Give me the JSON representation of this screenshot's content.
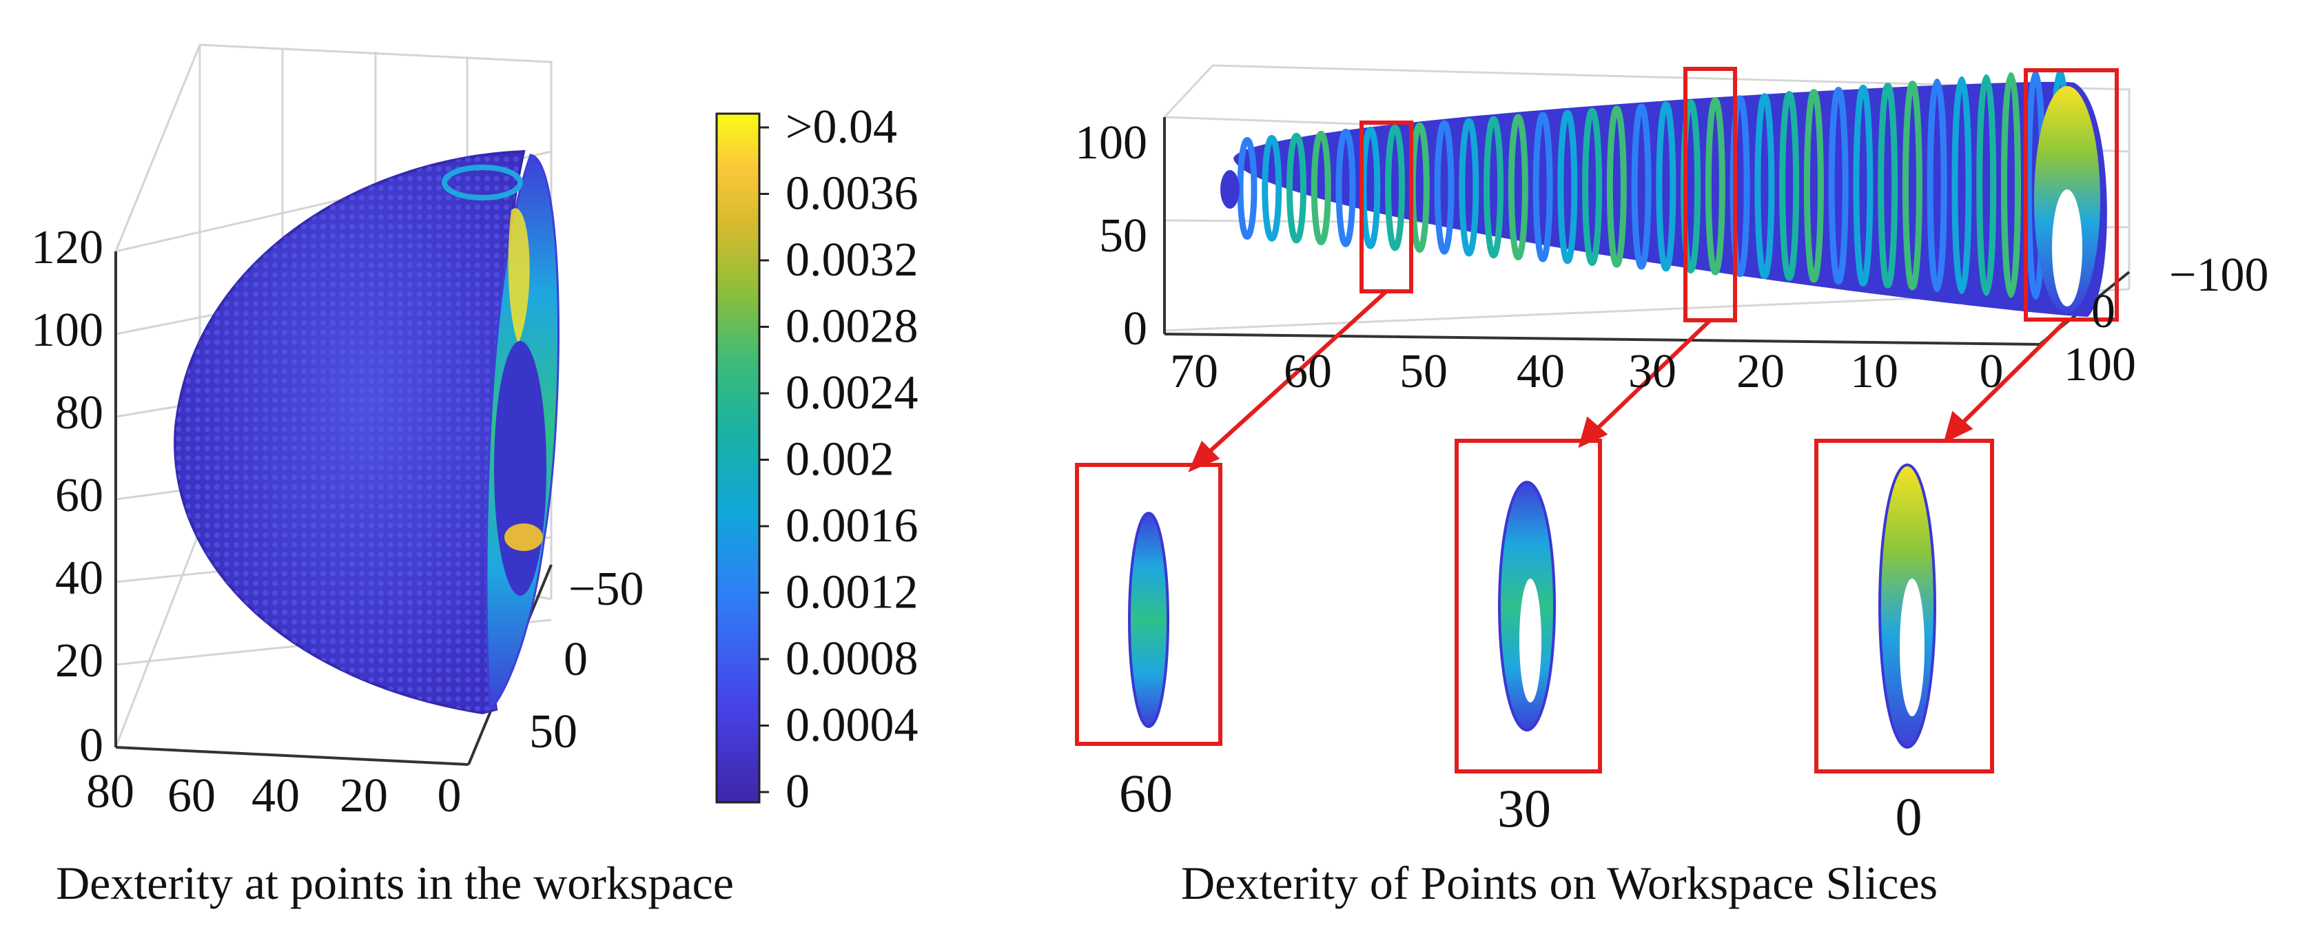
{
  "chart_data": [
    {
      "type": "scatter3d",
      "title": "Dexterity at points in the workspace",
      "x_ticks": [
        "80",
        "60",
        "40",
        "20",
        "0"
      ],
      "y_ticks": [
        "−50",
        "0",
        "50"
      ],
      "z_ticks": [
        "0",
        "20",
        "40",
        "60",
        "80",
        "100",
        "120"
      ],
      "xlim": [
        0,
        80
      ],
      "ylim": [
        -50,
        50
      ],
      "zlim": [
        0,
        120
      ],
      "grid": true,
      "colorbar": {
        "labels": [
          ">0.04",
          "0.0036",
          "0.0032",
          "0.0028",
          "0.0024",
          "0.002",
          "0.0016",
          "0.0012",
          "0.0008",
          "0.0004",
          "0"
        ],
        "colors": [
          "#3e26a8",
          "#4743e8",
          "#2e7ff6",
          "#12a6d9",
          "#1ab2a2",
          "#3dbb78",
          "#8cbf3a",
          "#d7ba2e",
          "#fbc73a",
          "#f9fb15"
        ]
      }
    },
    {
      "type": "scatter3d",
      "title": "Dexterity of Points on Workspace Slices",
      "x_ticks": [
        "70",
        "60",
        "50",
        "40",
        "30",
        "20",
        "10",
        "0"
      ],
      "y_ticks": [
        "−100",
        "0",
        "100"
      ],
      "z_ticks": [
        "0",
        "50",
        "100"
      ],
      "xlim": [
        0,
        70
      ],
      "ylim": [
        -100,
        100
      ],
      "zlim": [
        0,
        100
      ],
      "grid": true,
      "highlight_slices": [
        "60",
        "30",
        "0"
      ]
    }
  ],
  "captions": {
    "left": "Dexterity at points in the workspace",
    "right": "Dexterity of Points on Workspace Slices"
  }
}
